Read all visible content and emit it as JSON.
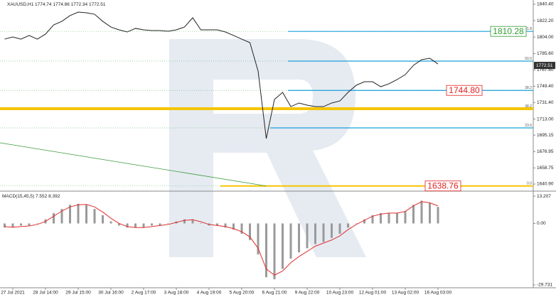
{
  "chart_data": [
    {
      "type": "line",
      "symbol": "XAUUSD,H1",
      "ohlc": [
        1774.74,
        1774.86,
        1772.34,
        1772.51
      ],
      "color": "#222222",
      "categories": [
        null,
        "27 Jul 2021",
        null,
        null,
        null,
        "28 Jul 14:00",
        null,
        null,
        null,
        "29 Jul 15:00",
        null,
        null,
        null,
        "30 Jul 16:00",
        null,
        null,
        null,
        "2 Aug 17:00",
        null,
        null,
        null,
        "3 Aug 18:00",
        null,
        null,
        null,
        "4 Aug 19:00",
        null,
        null,
        null,
        "5 Aug 20:00",
        null,
        null,
        null,
        "6 Aug 21:00",
        null,
        null,
        null,
        "9 Aug 22:00",
        null,
        null,
        null,
        "10 Aug 23:00",
        null,
        null,
        null,
        "12 Aug 01:00",
        null,
        null,
        null,
        "13 Aug 02:00",
        null,
        null,
        null,
        "16 Aug 03:00"
      ],
      "values": [
        1801.7,
        1804.1,
        1801.7,
        1805.7,
        1801.7,
        1807.3,
        1817.5,
        1821.4,
        1827.8,
        1831.7,
        1830.9,
        1829.3,
        1821.4,
        1815.1,
        1812.0,
        1809.6,
        1813.6,
        1812.0,
        1811.2,
        1811.2,
        1810.4,
        1812.0,
        1815.1,
        1825.4,
        1812.0,
        1812.0,
        1812.0,
        1809.6,
        1805.7,
        1801.7,
        1797.8,
        1766.3,
        1691.3,
        1734.7,
        1742.6,
        1726.8,
        1730.8,
        1728.4,
        1726.8,
        1726.8,
        1730.8,
        1733.1,
        1742.6,
        1750.5,
        1754.4,
        1754.4,
        1748.9,
        1752.1,
        1756.8,
        1762.3,
        1772.6,
        1778.9,
        1780.4,
        1774.1
      ],
      "ylim": [
        1633.8,
        1845.1
      ],
      "yticks": [
        {
          "value": 1840.4,
          "label": "1840.40"
        },
        {
          "value": 1822.2,
          "label": "1822.20"
        },
        {
          "value": 1804.0,
          "label": "1804.00"
        },
        {
          "value": 1785.6,
          "label": "1785.60"
        },
        {
          "value": 1767.6,
          "label": "1767.60"
        },
        {
          "value": 1749.4,
          "label": "1749.40"
        },
        {
          "value": 1731.4,
          "label": "1731.40"
        },
        {
          "value": 1713.0,
          "label": "1713.00"
        },
        1695.15,
        1676.95,
        1658.75,
        {
          "value": 1640.9,
          "label": "1640.90"
        }
      ],
      "trendline": {
        "values": [
          1686.6,
          1638.76
        ],
        "color": "#3a9a3a"
      },
      "levels": [
        {
          "name": "61.8",
          "value": 1810.28,
          "color": "#1aa0d8",
          "price_label": "1810.28",
          "label_color": "#2e9a2e"
        },
        {
          "name": "50.0",
          "value": 1777.3,
          "color": "#1aa0d8"
        },
        {
          "name": "38.2",
          "value": 1744.8,
          "color": "#1aa0d8",
          "price_label": "1744.80",
          "label_color": "#e02020"
        },
        {
          "name": "38.2",
          "value": 1724.5,
          "color": "#f5c400"
        },
        {
          "name": "23.6",
          "value": 1703.2,
          "color": "#1aa0d8"
        },
        {
          "name": "0.0",
          "value": 1638.76,
          "color": "#f5c400",
          "price_label": "1638.76",
          "label_color": "#e02020"
        }
      ]
    },
    {
      "type": "bar",
      "title": "MACD(15,45,5)",
      "readings": [
        7.552,
        8.392
      ],
      "histogram": {
        "color": "#9a9a9a",
        "values": [
          -2,
          -2,
          -1,
          -1,
          0,
          2,
          5,
          7,
          9,
          9.5,
          9,
          7,
          4,
          1,
          -1,
          -2,
          -2,
          -2,
          -1,
          -1,
          0,
          1,
          2,
          2,
          0,
          -1,
          -1,
          -2,
          -3,
          -5,
          -8,
          -15,
          -26,
          -27,
          -22,
          -17,
          -14,
          -12,
          -10,
          -9,
          -7,
          -5,
          -2,
          0,
          2,
          4,
          5,
          5,
          5,
          6,
          9,
          11,
          10,
          8
        ]
      },
      "signal": {
        "color": "#e03030",
        "values": [
          -1.5,
          -1.8,
          -1.5,
          -1.2,
          -0.5,
          1,
          3.5,
          6,
          8,
          9,
          9.2,
          8,
          5.5,
          2.5,
          0,
          -1.5,
          -2,
          -2,
          -1.5,
          -1,
          -0.5,
          0.5,
          1.5,
          1.8,
          0.8,
          -0.5,
          -1,
          -1.5,
          -2.5,
          -4,
          -6.5,
          -12,
          -22,
          -25,
          -23,
          -19,
          -16,
          -13.5,
          -11,
          -9.5,
          -8,
          -6,
          -3,
          -0.5,
          1.5,
          3.5,
          4.5,
          5,
          5,
          5.8,
          8.5,
          10.5,
          10,
          8.5
        ]
      },
      "ylim": [
        -31.1,
        15.28
      ],
      "yticks": [
        13.207,
        {
          "value": 0,
          "label": "0.00"
        },
        -29.731
      ]
    }
  ]
}
